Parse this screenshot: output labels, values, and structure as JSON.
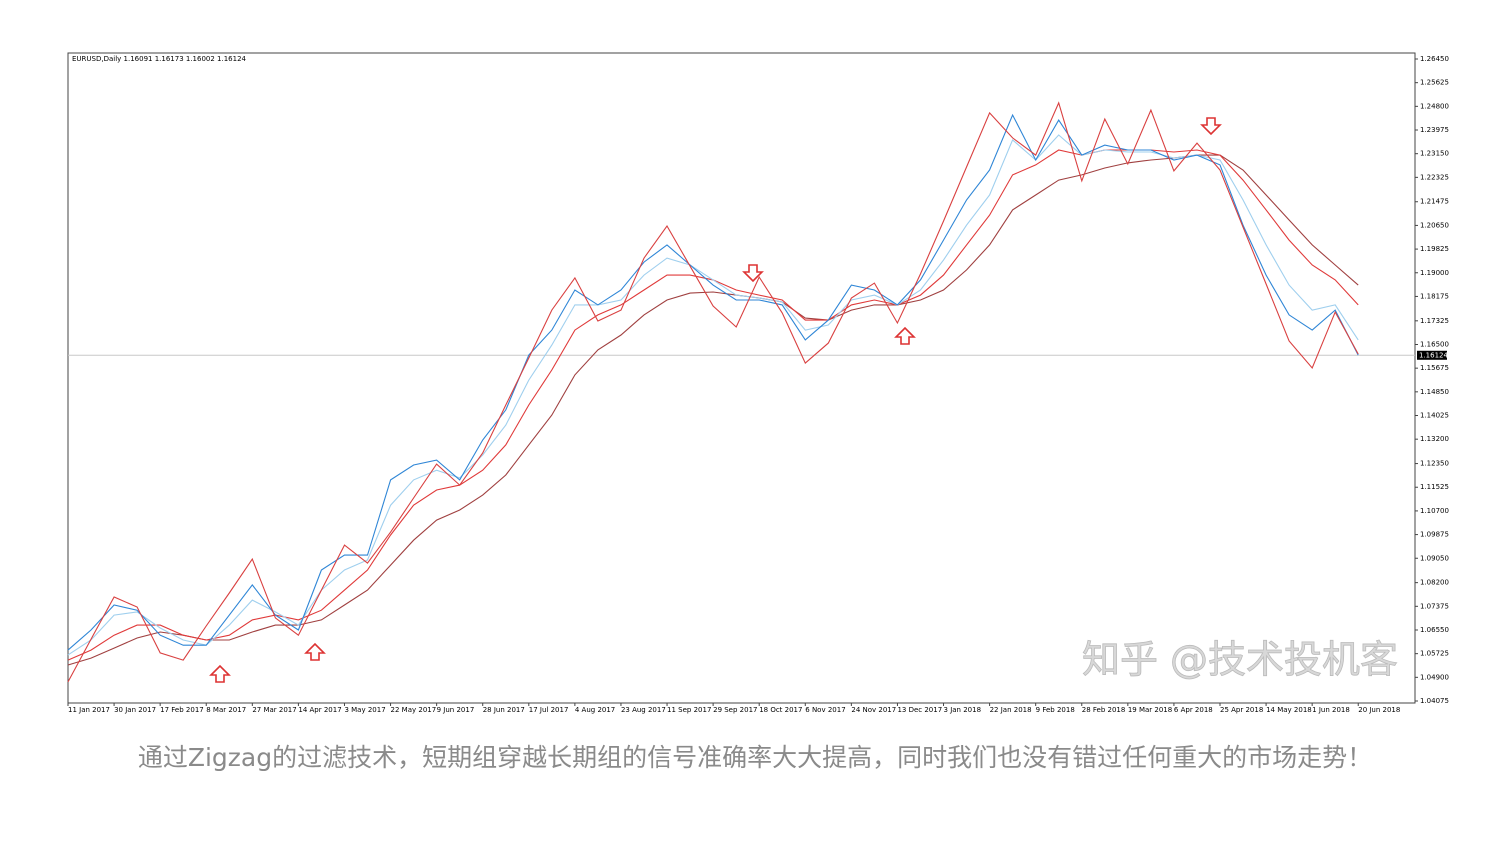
{
  "chart_data": {
    "type": "line",
    "header": "EURUSD,Daily  1.16091 1.16173 1.16002 1.16124",
    "watermark": "知乎 @技术投机客",
    "caption": "通过Zigzag的过滤技术，短期组穿越长期组的信号准确率大大提高，同时我们也没有错过任何重大的市场走势！",
    "categories": [
      "11 Jan 2017",
      null,
      "30 Jan 2017",
      null,
      "17 Feb 2017",
      null,
      "8 Mar 2017",
      null,
      "27 Mar 2017",
      null,
      "14 Apr 2017",
      null,
      "3 May 2017",
      null,
      "22 May 2017",
      null,
      "9 Jun 2017",
      null,
      "28 Jun 2017",
      null,
      "17 Jul 2017",
      null,
      "4 Aug 2017",
      null,
      "23 Aug 2017",
      null,
      "11 Sep 2017",
      null,
      "29 Sep 2017",
      null,
      "18 Oct 2017",
      null,
      "6 Nov 2017",
      null,
      "24 Nov 2017",
      null,
      "13 Dec 2017",
      null,
      "3 Jan 2018",
      null,
      "22 Jan 2018",
      null,
      "9 Feb 2018",
      null,
      "28 Feb 2018",
      null,
      "19 Mar 2018",
      null,
      "6 Apr 2018",
      null,
      "25 Apr 2018",
      null,
      "14 May 2018",
      null,
      "1 Jun 2018",
      null,
      "20 Jun 2018"
    ],
    "series": [
      {
        "color": "#a04040",
        "values": [
          1.0533,
          1.0557,
          1.0592,
          1.0627,
          1.0648,
          1.0637,
          1.062,
          1.062,
          1.0648,
          1.0672,
          1.0672,
          1.069,
          1.0742,
          1.0794,
          1.0881,
          1.0968,
          1.1038,
          1.1073,
          1.1125,
          1.1195,
          1.13,
          1.1404,
          1.1544,
          1.1631,
          1.1683,
          1.1753,
          1.1805,
          1.1829,
          1.1833,
          1.1822,
          1.1812,
          1.1798,
          1.1742,
          1.1735,
          1.177,
          1.1788,
          1.1788,
          1.1805,
          1.184,
          1.191,
          1.1997,
          1.2119,
          1.2171,
          1.2223,
          1.2241,
          1.2265,
          1.2283,
          1.2293,
          1.23,
          1.231,
          1.231,
          1.2258,
          1.2171,
          1.2084,
          1.1997,
          1.1927,
          1.1857
        ]
      },
      {
        "color": "#e03a3a",
        "values": [
          1.055,
          1.0585,
          1.0637,
          1.0672,
          1.0672,
          1.0637,
          1.062,
          1.0637,
          1.069,
          1.0707,
          1.069,
          1.0724,
          1.0794,
          1.0864,
          1.0986,
          1.109,
          1.1143,
          1.116,
          1.1212,
          1.13,
          1.1439,
          1.1561,
          1.17,
          1.1753,
          1.1788,
          1.184,
          1.1892,
          1.1892,
          1.1875,
          1.184,
          1.1822,
          1.1805,
          1.1735,
          1.1735,
          1.1788,
          1.1805,
          1.1788,
          1.1822,
          1.1892,
          1.1997,
          1.2101,
          1.2241,
          1.2276,
          1.2328,
          1.231,
          1.2328,
          1.2328,
          1.2328,
          1.2321,
          1.2328,
          1.231,
          1.2223,
          1.2119,
          1.2014,
          1.1927,
          1.1875,
          1.1788
        ]
      },
      {
        "color": "#9fcfee",
        "values": [
          1.0568,
          1.062,
          1.0707,
          1.0718,
          1.0662,
          1.062,
          1.0602,
          1.0672,
          1.0759,
          1.0718,
          1.0672,
          1.0794,
          1.0864,
          1.0899,
          1.109,
          1.1178,
          1.1212,
          1.1185,
          1.1265,
          1.1369,
          1.1526,
          1.1648,
          1.1788,
          1.1788,
          1.1805,
          1.1892,
          1.1951,
          1.1927,
          1.1875,
          1.1822,
          1.1812,
          1.1798,
          1.17,
          1.1718,
          1.1805,
          1.1822,
          1.1788,
          1.184,
          1.1944,
          1.2066,
          1.2171,
          1.2363,
          1.2293,
          1.238,
          1.231,
          1.2328,
          1.2321,
          1.2321,
          1.23,
          1.231,
          1.2293,
          1.2154,
          1.1997,
          1.1857,
          1.177,
          1.1788,
          1.1666
        ]
      },
      {
        "color": "#2f86d6",
        "values": [
          1.0585,
          1.0655,
          1.0742,
          1.0724,
          1.0637,
          1.0602,
          1.0602,
          1.0707,
          1.0812,
          1.0707,
          1.0655,
          1.0864,
          1.0916,
          1.0916,
          1.1178,
          1.123,
          1.1247,
          1.1178,
          1.1317,
          1.1422,
          1.1613,
          1.17,
          1.184,
          1.1788,
          1.184,
          1.1937,
          1.1997,
          1.1927,
          1.1857,
          1.1805,
          1.1805,
          1.1788,
          1.1666,
          1.1735,
          1.1857,
          1.184,
          1.1788,
          1.1875,
          1.2014,
          1.2154,
          1.2258,
          1.245,
          1.2293,
          1.2432,
          1.231,
          1.2345,
          1.2328,
          1.2328,
          1.2293,
          1.231,
          1.2276,
          1.2066,
          1.1892,
          1.1753,
          1.17,
          1.177,
          1.1613
        ]
      },
      {
        "color": "#d94040",
        "values": [
          1.0474,
          1.0623,
          1.077,
          1.0735,
          1.0575,
          1.055,
          1.0669,
          1.0784,
          1.0902,
          1.0697,
          1.0637,
          1.0794,
          1.0951,
          1.0888,
          1.0996,
          1.1115,
          1.1233,
          1.116,
          1.1272,
          1.1439,
          1.1603,
          1.177,
          1.1882,
          1.1732,
          1.177,
          1.1951,
          1.2063,
          1.1923,
          1.1784,
          1.1711,
          1.1885,
          1.176,
          1.1585,
          1.1655,
          1.1812,
          1.1864,
          1.1725,
          1.1896,
          1.208,
          1.2269,
          1.2457,
          1.237,
          1.231,
          1.2492,
          1.222,
          1.2436,
          1.2279,
          1.2467,
          1.2255,
          1.2352,
          1.2258,
          1.2059,
          1.1861,
          1.1662,
          1.1568,
          1.1763,
          1.1617
        ]
      }
    ],
    "last_price": 1.16124,
    "ylim": [
      1.04075,
      1.2645
    ],
    "yticks": [
      {
        "value": 1.2645,
        "label": "1.26450"
      },
      1.25625,
      {
        "value": 1.248,
        "label": "1.24800"
      },
      1.23975,
      {
        "value": 1.2315,
        "label": "1.23150"
      },
      1.22325,
      1.21475,
      {
        "value": 1.2065,
        "label": "1.20650"
      },
      1.19825,
      {
        "value": 1.19,
        "label": "1.19000"
      },
      1.18175,
      1.17325,
      {
        "value": 1.165,
        "label": "1.16500"
      },
      1.15675,
      {
        "value": 1.1485,
        "label": "1.14850"
      },
      1.14025,
      {
        "value": 1.132,
        "label": "1.13200"
      },
      {
        "value": 1.1235,
        "label": "1.12350"
      },
      1.11525,
      {
        "value": 1.107,
        "label": "1.10700"
      },
      1.09875,
      {
        "value": 1.0905,
        "label": "1.09050"
      },
      {
        "value": 1.082,
        "label": "1.08200"
      },
      1.07375,
      {
        "value": 1.0655,
        "label": "1.06550"
      },
      1.05725,
      {
        "value": 1.049,
        "label": "1.04900"
      },
      1.04075
    ],
    "grid": false
  }
}
